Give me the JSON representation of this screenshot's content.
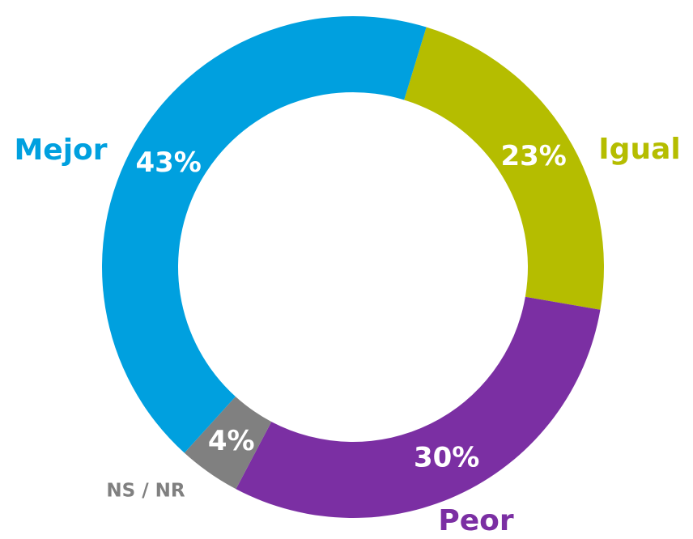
{
  "chart_data": {
    "type": "donut",
    "categories": [
      "Igual",
      "Peor",
      "NS / NR",
      "Mejor"
    ],
    "values": [
      23,
      30,
      4,
      43
    ],
    "value_labels": [
      "23%",
      "30%",
      "4%",
      "43%"
    ],
    "colors": [
      "#b5bd00",
      "#7b2fa3",
      "#808080",
      "#00a0df"
    ]
  }
}
